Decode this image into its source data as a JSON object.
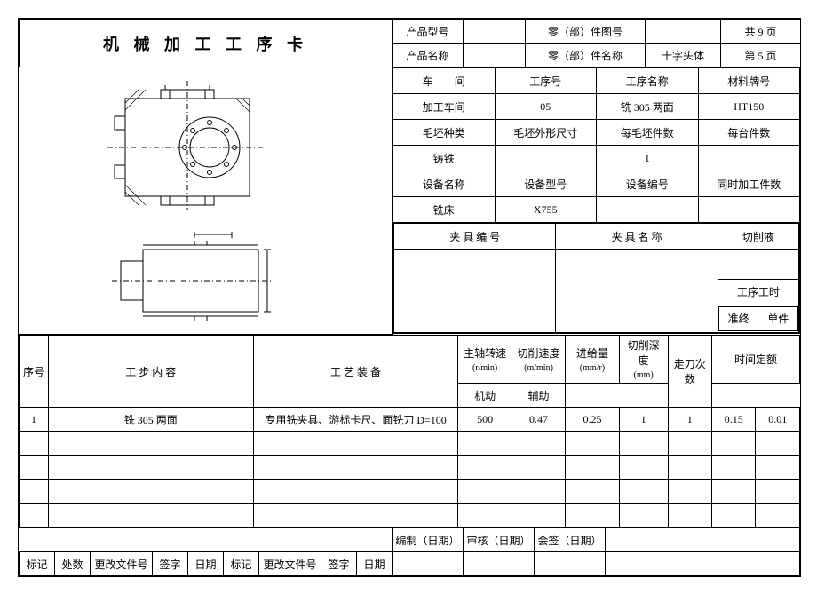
{
  "title": "机 械 加 工 工 序 卡",
  "header": {
    "product_model_label": "产品型号",
    "product_model": "",
    "part_drawing_no_label": "零（部）件图号",
    "part_drawing_no": "",
    "total_pages": "共 9 页",
    "product_name_label": "产品名称",
    "product_name": "",
    "part_name_label": "零（部）件名称",
    "part_name": "十字头体",
    "current_page": "第 5 页"
  },
  "info": {
    "workshop_label": "车　　间",
    "process_no_label": "工序号",
    "process_name_label": "工序名称",
    "material_grade_label": "材料牌号",
    "workshop": "加工车间",
    "process_no": "05",
    "process_name": "铣 305 两面",
    "material_grade": "HT150",
    "blank_type_label": "毛坯种类",
    "blank_size_label": "毛坯外形尺寸",
    "per_blank_pcs_label": "每毛坯件数",
    "per_unit_pcs_label": "每台件数",
    "blank_type": "铸铁",
    "blank_size": "",
    "per_blank_pcs": "1",
    "per_unit_pcs": "",
    "equip_name_label": "设备名称",
    "equip_model_label": "设备型号",
    "equip_no_label": "设备编号",
    "simul_pcs_label": "同时加工件数",
    "equip_name": "铣床",
    "equip_model": "X755",
    "equip_no": "",
    "simul_pcs": "",
    "fixture_no_label": "夹 具 编  号",
    "fixture_name_label": "夹 具 名 称",
    "coolant_label": "切削液",
    "fixture_no": "",
    "fixture_name": "",
    "coolant": "",
    "process_hours_label": "工序工时",
    "prep_label": "准终",
    "unit_label": "单件"
  },
  "cols": {
    "seq": "序号",
    "step_content": "工  步  内  容",
    "tooling": "工  艺  装  备",
    "spindle_speed": "主轴转速",
    "spindle_speed_unit": "(r/min)",
    "cut_speed": "切削速度",
    "cut_speed_unit": "(m/min)",
    "feed": "进给量",
    "feed_unit": "(mm/r)",
    "cut_depth": "切削深度",
    "cut_depth_unit": "(mm)",
    "passes": "走刀次数",
    "time_quota": "时间定额",
    "mach": "机动",
    "aux": "辅助"
  },
  "rows": [
    {
      "seq": "1",
      "content": "铣 305 两面",
      "tooling": "专用铣夹具、游标卡尺、面铣刀 D=100",
      "spindle": "500",
      "cutv": "0.47",
      "feed": "0.25",
      "depth": "1",
      "passes": "1",
      "mach": "0.15",
      "aux": "0.01"
    },
    {
      "seq": "",
      "content": "",
      "tooling": "",
      "spindle": "",
      "cutv": "",
      "feed": "",
      "depth": "",
      "passes": "",
      "mach": "",
      "aux": ""
    },
    {
      "seq": "",
      "content": "",
      "tooling": "",
      "spindle": "",
      "cutv": "",
      "feed": "",
      "depth": "",
      "passes": "",
      "mach": "",
      "aux": ""
    },
    {
      "seq": "",
      "content": "",
      "tooling": "",
      "spindle": "",
      "cutv": "",
      "feed": "",
      "depth": "",
      "passes": "",
      "mach": "",
      "aux": ""
    },
    {
      "seq": "",
      "content": "",
      "tooling": "",
      "spindle": "",
      "cutv": "",
      "feed": "",
      "depth": "",
      "passes": "",
      "mach": "",
      "aux": ""
    }
  ],
  "footer": {
    "compile": "编制（日期）",
    "review": "审核（日期）",
    "countersign": "会签（日期）",
    "mark": "标记",
    "qty": "处数",
    "change_doc": "更改文件号",
    "sign": "签字",
    "date": "日期"
  },
  "drawing": {
    "stroke": "#000",
    "fill": "none",
    "cl_dash": "6,3,1,3",
    "hatch_gap": 5
  }
}
